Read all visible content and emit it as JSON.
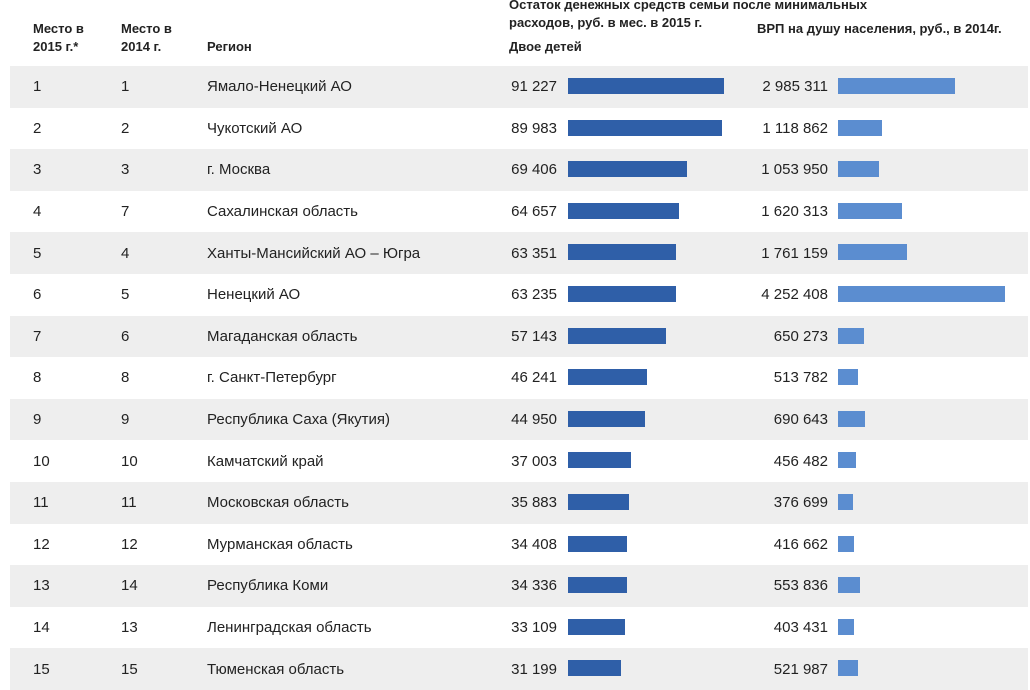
{
  "headers": {
    "rank_2015": "Место в 2015 г.*",
    "rank_2014": "Место в 2014 г.",
    "region": "Регион",
    "money": "Остаток денежных средств семьи после минимальных расходов, руб. в мес. в 2015 г.",
    "money_sub": "Двое детей",
    "vrp": "ВРП на душу населения, руб., в 2014г."
  },
  "colors": {
    "money_bar": "#2f5fa8",
    "vrp_bar": "#5b8dd0",
    "row_shade": "#eeeeee"
  },
  "chart_data": {
    "type": "table",
    "columns": [
      "Место в 2015 г.*",
      "Место в 2014 г.",
      "Регион",
      "Двое детей",
      "ВРП на душу населения, руб., в 2014г."
    ],
    "rows": [
      {
        "rank2015": "1",
        "rank2014": "1",
        "region": "Ямало-Ненецкий АО",
        "money": 91227,
        "money_label": "91 227",
        "vrp": 2985311,
        "vrp_label": "2 985 311"
      },
      {
        "rank2015": "2",
        "rank2014": "2",
        "region": "Чукотский АО",
        "money": 89983,
        "money_label": "89 983",
        "vrp": 1118862,
        "vrp_label": "1 118 862"
      },
      {
        "rank2015": "3",
        "rank2014": "3",
        "region": "г. Москва",
        "money": 69406,
        "money_label": "69 406",
        "vrp": 1053950,
        "vrp_label": "1 053 950"
      },
      {
        "rank2015": "4",
        "rank2014": "7",
        "region": "Сахалинская область",
        "money": 64657,
        "money_label": "64 657",
        "vrp": 1620313,
        "vrp_label": "1 620 313"
      },
      {
        "rank2015": "5",
        "rank2014": "4",
        "region": "Ханты-Мансийский АО – Югра",
        "money": 63351,
        "money_label": "63 351",
        "vrp": 1761159,
        "vrp_label": "1 761 159"
      },
      {
        "rank2015": "6",
        "rank2014": "5",
        "region": "Ненецкий АО",
        "money": 63235,
        "money_label": "63 235",
        "vrp": 4252408,
        "vrp_label": "4 252 408"
      },
      {
        "rank2015": "7",
        "rank2014": "6",
        "region": "Магаданская область",
        "money": 57143,
        "money_label": "57 143",
        "vrp": 650273,
        "vrp_label": "650 273"
      },
      {
        "rank2015": "8",
        "rank2014": "8",
        "region": "г. Санкт-Петербург",
        "money": 46241,
        "money_label": "46 241",
        "vrp": 513782,
        "vrp_label": "513 782"
      },
      {
        "rank2015": "9",
        "rank2014": "9",
        "region": "Республика Саха (Якутия)",
        "money": 44950,
        "money_label": "44 950",
        "vrp": 690643,
        "vrp_label": "690 643"
      },
      {
        "rank2015": "10",
        "rank2014": "10",
        "region": "Камчатский край",
        "money": 37003,
        "money_label": "37 003",
        "vrp": 456482,
        "vrp_label": "456 482"
      },
      {
        "rank2015": "11",
        "rank2014": "11",
        "region": "Московская область",
        "money": 35883,
        "money_label": "35 883",
        "vrp": 376699,
        "vrp_label": "376 699"
      },
      {
        "rank2015": "12",
        "rank2014": "12",
        "region": "Мурманская область",
        "money": 34408,
        "money_label": "34 408",
        "vrp": 416662,
        "vrp_label": "416 662"
      },
      {
        "rank2015": "13",
        "rank2014": "14",
        "region": "Республика Коми",
        "money": 34336,
        "money_label": "34 336",
        "vrp": 553836,
        "vrp_label": "553 836"
      },
      {
        "rank2015": "14",
        "rank2014": "13",
        "region": "Ленинградская область",
        "money": 33109,
        "money_label": "33 109",
        "vrp": 403431,
        "vrp_label": "403 431"
      },
      {
        "rank2015": "15",
        "rank2014": "15",
        "region": "Тюменская область",
        "money": 31199,
        "money_label": "31 199",
        "vrp": 521987,
        "vrp_label": "521 987"
      }
    ]
  }
}
